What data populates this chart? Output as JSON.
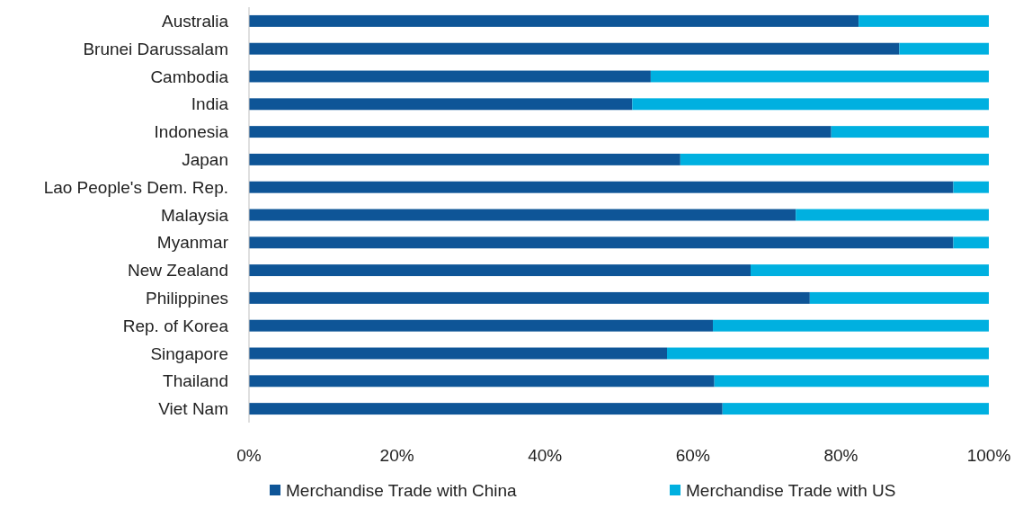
{
  "chart_data": {
    "type": "bar",
    "orientation": "horizontal",
    "stacked": true,
    "categories": [
      "Australia",
      "Brunei Darussalam",
      "Cambodia",
      "India",
      "Indonesia",
      "Japan",
      "Lao People's Dem. Rep.",
      "Malaysia",
      "Myanmar",
      "New Zealand",
      "Philippines",
      "Rep. of Korea",
      "Singapore",
      "Thailand",
      "Viet Nam"
    ],
    "series": [
      {
        "name": "Merchandise Trade with China",
        "color": "#0e5597",
        "values": [
          82.4,
          87.9,
          54.3,
          51.8,
          78.7,
          58.3,
          95.2,
          73.9,
          95.2,
          67.8,
          75.8,
          62.7,
          56.5,
          62.9,
          64.0
        ]
      },
      {
        "name": "Merchandise Trade with US",
        "color": "#00b0e0",
        "values": [
          17.6,
          12.1,
          45.7,
          48.2,
          21.3,
          41.7,
          4.8,
          26.1,
          4.8,
          32.2,
          24.2,
          37.3,
          43.5,
          37.1,
          36.0
        ]
      }
    ],
    "xlim": [
      0,
      100
    ],
    "xticks": [
      {
        "value": 0,
        "label": "0%"
      },
      {
        "value": 20,
        "label": "20%"
      },
      {
        "value": 40,
        "label": "40%"
      },
      {
        "value": 60,
        "label": "60%"
      },
      {
        "value": 80,
        "label": "80%"
      },
      {
        "value": 100,
        "label": "100%"
      }
    ],
    "legend": "bottom"
  }
}
